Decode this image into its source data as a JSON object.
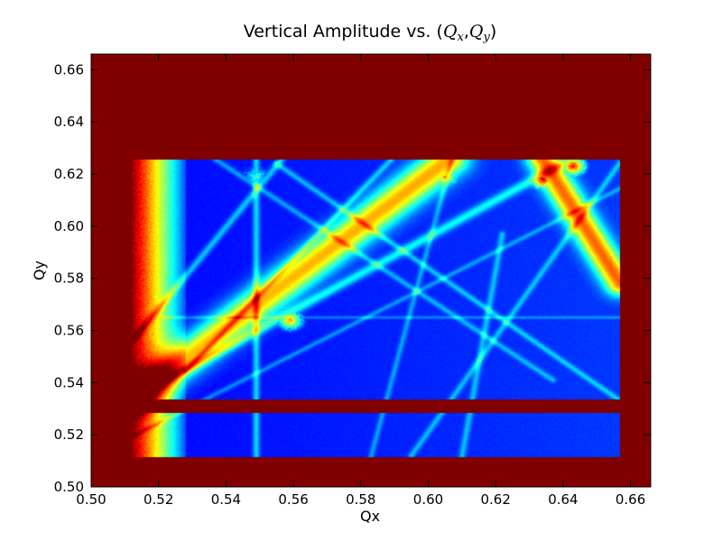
{
  "chart_data": {
    "type": "heatmap",
    "title": {
      "prefix": "Vertical Amplitude vs. ",
      "open": "(",
      "q1": "Q",
      "sub1": "x",
      "comma": ",",
      "q2": "Q",
      "sub2": "y",
      "close": ")"
    },
    "xlabel": "Qx",
    "ylabel": "Qy",
    "xlim": [
      0.5,
      0.666
    ],
    "ylim": [
      0.5,
      0.666
    ],
    "xticks": [
      "0.50",
      "0.52",
      "0.54",
      "0.56",
      "0.58",
      "0.60",
      "0.62",
      "0.64",
      "0.66"
    ],
    "yticks": [
      "0.50",
      "0.52",
      "0.54",
      "0.56",
      "0.58",
      "0.60",
      "0.62",
      "0.64",
      "0.66"
    ],
    "colormap": "jet",
    "background_color": "#800000",
    "scan_region": {
      "qx_range": [
        0.512,
        0.657
      ],
      "qy_bands": [
        {
          "qy_range": [
            0.5335,
            0.6255
          ]
        },
        {
          "qy_range": [
            0.5115,
            0.5285
          ]
        }
      ],
      "left_edge_qx_range": [
        0.512,
        0.528
      ]
    },
    "resonance_lines": [
      {
        "qx": [
          0.5125,
          0.606
        ],
        "qy": [
          0.534,
          0.6255
        ],
        "intensity": 0.55,
        "width": 0.0042
      },
      {
        "qx": [
          0.634,
          0.657
        ],
        "qy": [
          0.6255,
          0.578
        ],
        "intensity": 0.6,
        "width": 0.0032
      },
      {
        "qx": [
          0.5125,
          0.642
        ],
        "qy": [
          0.534,
          0.6255
        ],
        "intensity": 0.22,
        "width": 0.0012
      },
      {
        "qx": [
          0.549,
          0.549
        ],
        "qy": [
          0.512,
          0.6255
        ],
        "intensity": 0.2,
        "width": 0.0007
      },
      {
        "qx": [
          0.5125,
          0.5565
        ],
        "qy": [
          0.5565,
          0.6255
        ],
        "intensity": 0.18,
        "width": 0.0008
      },
      {
        "qx": [
          0.528,
          0.589
        ],
        "qy": [
          0.5445,
          0.6255
        ],
        "intensity": 0.16,
        "width": 0.0007
      },
      {
        "qx": [
          0.555,
          0.657
        ],
        "qy": [
          0.624,
          0.533
        ],
        "intensity": 0.16,
        "width": 0.0007
      },
      {
        "qx": [
          0.537,
          0.637
        ],
        "qy": [
          0.6255,
          0.541
        ],
        "intensity": 0.14,
        "width": 0.0007
      },
      {
        "qx": [
          0.595,
          0.657
        ],
        "qy": [
          0.512,
          0.6245
        ],
        "intensity": 0.15,
        "width": 0.0007
      },
      {
        "qx": [
          0.61,
          0.622
        ],
        "qy": [
          0.5115,
          0.597
        ],
        "intensity": 0.15,
        "width": 0.0007
      },
      {
        "qx": [
          0.5125,
          0.657
        ],
        "qy": [
          0.5195,
          0.6145
        ],
        "intensity": 0.12,
        "width": 0.0006
      },
      {
        "qx": [
          0.583,
          0.607
        ],
        "qy": [
          0.5115,
          0.6255
        ],
        "intensity": 0.13,
        "width": 0.0006
      },
      {
        "qx": [
          0.521,
          0.657
        ],
        "qy": [
          0.565,
          0.565
        ],
        "intensity": 0.1,
        "width": 0.0004
      }
    ],
    "hot_spots": [
      {
        "qx": 0.634,
        "qy": 0.618,
        "intensity": 0.95
      },
      {
        "qx": 0.643,
        "qy": 0.623,
        "intensity": 0.9
      },
      {
        "qx": 0.578,
        "qy": 0.597,
        "intensity": 0.7
      },
      {
        "qx": 0.559,
        "qy": 0.564,
        "intensity": 0.75
      },
      {
        "qx": 0.605,
        "qy": 0.619,
        "intensity": 0.75
      },
      {
        "qx": 0.549,
        "qy": 0.619,
        "intensity": 0.45
      },
      {
        "qx": 0.521,
        "qy": 0.542,
        "intensity": 0.8
      }
    ]
  }
}
